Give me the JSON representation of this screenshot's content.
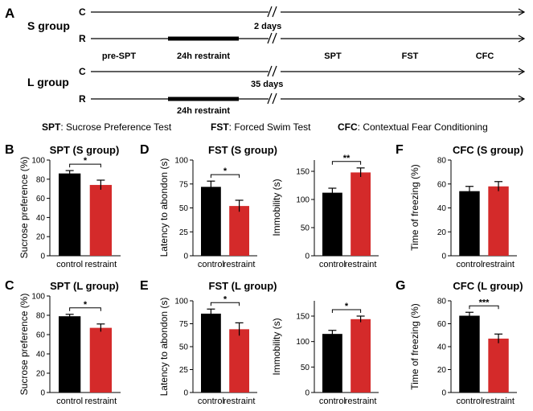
{
  "design": {
    "panel_label": "A",
    "groups": [
      {
        "name": "S group",
        "rows": [
          "C",
          "R"
        ],
        "gap_label": "2 days"
      },
      {
        "name": "L group",
        "rows": [
          "C",
          "R"
        ],
        "gap_label": "35 days"
      }
    ],
    "restraint_label": "24h restraint",
    "pre_spt_label": "pre-SPT",
    "tests": [
      "SPT",
      "FST",
      "CFC"
    ],
    "legend": [
      {
        "abbr": "SPT",
        "text": ": Sucrose Preference Test"
      },
      {
        "abbr": "FST",
        "text": ": Forced Swim Test"
      },
      {
        "abbr": "CFC",
        "text": ": Contextual Fear Conditioning"
      }
    ]
  },
  "colors": {
    "control": "#000000",
    "restraint": "#d42a2a"
  },
  "chart_data": [
    {
      "id": "B",
      "panel_label": "B",
      "type": "bar",
      "title": "SPT (S group)",
      "ylabel": "Sucrose preference (%)",
      "categories": [
        "control",
        "restraint"
      ],
      "values": [
        86,
        74
      ],
      "errors": [
        3,
        5
      ],
      "ylim": [
        0,
        100
      ],
      "yticks": [
        "0",
        "20",
        "40",
        "60",
        "80",
        "100"
      ],
      "significance": "*"
    },
    {
      "id": "D1",
      "panel_label": "D",
      "type": "bar",
      "title": "FST (S group)",
      "ylabel": "Latency to abondon (s)",
      "categories": [
        "control",
        "restraint"
      ],
      "values": [
        72,
        52
      ],
      "errors": [
        6,
        6
      ],
      "ylim": [
        0,
        100
      ],
      "yticks": [
        "0",
        "25",
        "50",
        "75",
        "100"
      ],
      "significance": "*"
    },
    {
      "id": "D2",
      "type": "bar",
      "ylabel": "Immobility (s)",
      "categories": [
        "control",
        "restraint"
      ],
      "values": [
        112,
        148
      ],
      "errors": [
        8,
        8
      ],
      "ylim": [
        0,
        170
      ],
      "yticks": [
        "0",
        "50",
        "100",
        "150"
      ],
      "significance": "**"
    },
    {
      "id": "F",
      "panel_label": "F",
      "type": "bar",
      "title": "CFC (S group)",
      "ylabel": "Time of freezing (%)",
      "categories": [
        "control",
        "restraint"
      ],
      "values": [
        54,
        58
      ],
      "errors": [
        4,
        4
      ],
      "ylim": [
        0,
        80
      ],
      "yticks": [
        "0",
        "20",
        "40",
        "60",
        "80"
      ],
      "significance": ""
    },
    {
      "id": "C",
      "panel_label": "C",
      "type": "bar",
      "title": "SPT (L group)",
      "ylabel": "Sucrose preference (%)",
      "categories": [
        "control",
        "restraint"
      ],
      "values": [
        79,
        67
      ],
      "errors": [
        2,
        4
      ],
      "ylim": [
        0,
        100
      ],
      "yticks": [
        "0",
        "20",
        "40",
        "60",
        "80",
        "100"
      ],
      "significance": "*"
    },
    {
      "id": "E1",
      "panel_label": "E",
      "type": "bar",
      "title": "FST (L group)",
      "ylabel": "Latency to abondon (s)",
      "categories": [
        "control",
        "restraint"
      ],
      "values": [
        86,
        69
      ],
      "errors": [
        5,
        7
      ],
      "ylim": [
        0,
        100
      ],
      "yticks": [
        "0",
        "25",
        "50",
        "75",
        "100"
      ],
      "significance": "*"
    },
    {
      "id": "E2",
      "type": "bar",
      "ylabel": "Immobility (s)",
      "categories": [
        "control",
        "restraint"
      ],
      "values": [
        115,
        144
      ],
      "errors": [
        7,
        6
      ],
      "ylim": [
        0,
        180
      ],
      "yticks": [
        "0",
        "50",
        "100",
        "150"
      ],
      "significance": "*"
    },
    {
      "id": "G",
      "panel_label": "G",
      "type": "bar",
      "title": "CFC (L group)",
      "ylabel": "Time of freezing (%)",
      "categories": [
        "control",
        "restraint"
      ],
      "values": [
        67,
        47
      ],
      "errors": [
        3,
        4
      ],
      "ylim": [
        0,
        80
      ],
      "yticks": [
        "0",
        "20",
        "40",
        "60",
        "80"
      ],
      "significance": "***"
    }
  ]
}
